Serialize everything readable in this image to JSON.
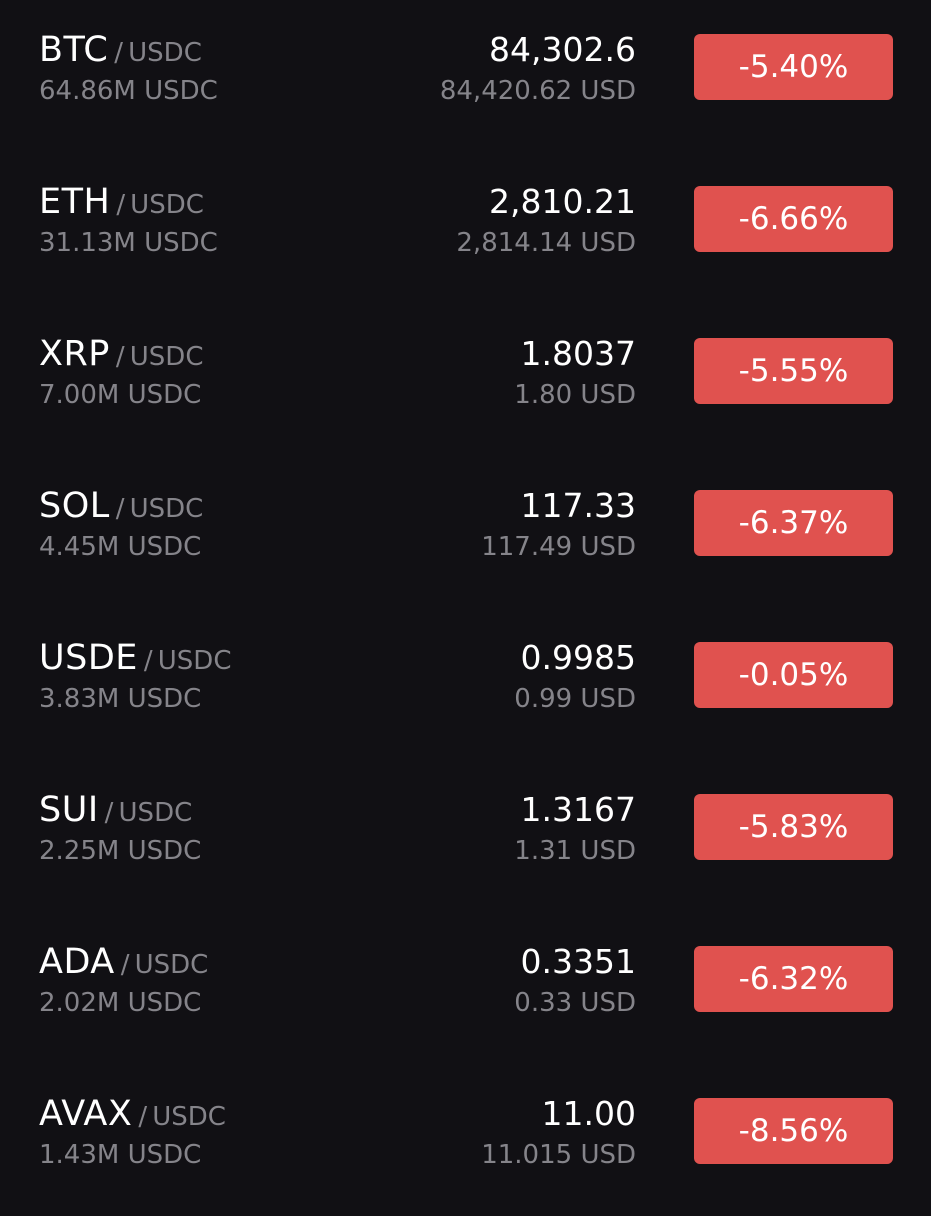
{
  "markets": [
    {
      "base": "BTC",
      "separator": "/",
      "quote": "USDC",
      "volume": "64.86M USDC",
      "price": "84,302.6",
      "price_usd": "84,420.62 USD",
      "change": "-5.40%"
    },
    {
      "base": "ETH",
      "separator": "/",
      "quote": "USDC",
      "volume": "31.13M USDC",
      "price": "2,810.21",
      "price_usd": "2,814.14 USD",
      "change": "-6.66%"
    },
    {
      "base": "XRP",
      "separator": "/",
      "quote": "USDC",
      "volume": "7.00M USDC",
      "price": "1.8037",
      "price_usd": "1.80 USD",
      "change": "-5.55%"
    },
    {
      "base": "SOL",
      "separator": "/",
      "quote": "USDC",
      "volume": "4.45M USDC",
      "price": "117.33",
      "price_usd": "117.49 USD",
      "change": "-6.37%"
    },
    {
      "base": "USDE",
      "separator": "/",
      "quote": "USDC",
      "volume": "3.83M USDC",
      "price": "0.9985",
      "price_usd": "0.99 USD",
      "change": "-0.05%"
    },
    {
      "base": "SUI",
      "separator": "/",
      "quote": "USDC",
      "volume": "2.25M USDC",
      "price": "1.3167",
      "price_usd": "1.31 USD",
      "change": "-5.83%"
    },
    {
      "base": "ADA",
      "separator": "/",
      "quote": "USDC",
      "volume": "2.02M USDC",
      "price": "0.3351",
      "price_usd": "0.33 USD",
      "change": "-6.32%"
    },
    {
      "base": "AVAX",
      "separator": "/",
      "quote": "USDC",
      "volume": "1.43M USDC",
      "price": "11.00",
      "price_usd": "11.015 USD",
      "change": "-8.56%"
    }
  ],
  "colors": {
    "background": "#111014",
    "primary_text": "#ffffff",
    "secondary_text": "#85848a",
    "negative_badge": "#e0524f"
  }
}
